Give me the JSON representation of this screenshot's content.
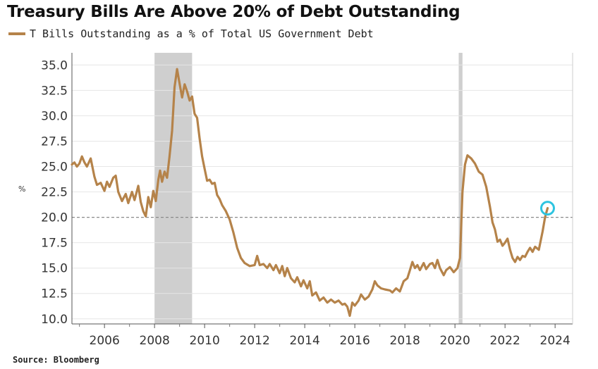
{
  "title": "Treasury Bills Are Above 20% of Debt Outstanding",
  "source": "Source: Bloomberg",
  "chart_data": {
    "type": "line",
    "title": "Treasury Bills Are Above 20% of Debt Outstanding",
    "ylabel": "%",
    "xlabel": "",
    "xlim": [
      2004.7,
      2024.7
    ],
    "ylim": [
      9.5,
      36.2
    ],
    "x_ticks": [
      "2006",
      "2008",
      "2010",
      "2012",
      "2014",
      "2016",
      "2018",
      "2020",
      "2022",
      "2024"
    ],
    "y_ticks": [
      "35.0",
      "32.5",
      "30.0",
      "27.5",
      "25.0",
      "22.5",
      "20.0",
      "17.5",
      "15.0",
      "12.5",
      "10.0"
    ],
    "grid": "horizontal",
    "reference_line": 20.0,
    "recession_bands": [
      [
        2008.0,
        2009.5
      ],
      [
        2020.15,
        2020.3
      ]
    ],
    "highlight_point": {
      "x": 2023.7,
      "y": 20.9
    },
    "colors": {
      "line": "#b5834a",
      "band": "#cfcfcf",
      "highlight": "#2ec4e0"
    },
    "series": [
      {
        "name": "T Bills Outstanding as a % of Total US Government Debt",
        "points": [
          [
            2004.7,
            25.2
          ],
          [
            2004.8,
            25.4
          ],
          [
            2004.9,
            25.0
          ],
          [
            2005.0,
            25.3
          ],
          [
            2005.1,
            26.0
          ],
          [
            2005.2,
            25.4
          ],
          [
            2005.3,
            25.0
          ],
          [
            2005.45,
            25.8
          ],
          [
            2005.6,
            24.0
          ],
          [
            2005.7,
            23.2
          ],
          [
            2005.85,
            23.4
          ],
          [
            2006.0,
            22.6
          ],
          [
            2006.1,
            23.5
          ],
          [
            2006.2,
            23.0
          ],
          [
            2006.35,
            23.9
          ],
          [
            2006.45,
            24.1
          ],
          [
            2006.55,
            22.5
          ],
          [
            2006.7,
            21.6
          ],
          [
            2006.85,
            22.3
          ],
          [
            2006.95,
            21.4
          ],
          [
            2007.1,
            22.5
          ],
          [
            2007.2,
            21.7
          ],
          [
            2007.35,
            23.1
          ],
          [
            2007.45,
            21.5
          ],
          [
            2007.55,
            20.6
          ],
          [
            2007.65,
            20.1
          ],
          [
            2007.75,
            22.0
          ],
          [
            2007.85,
            21.0
          ],
          [
            2007.95,
            22.6
          ],
          [
            2008.05,
            21.6
          ],
          [
            2008.15,
            23.7
          ],
          [
            2008.22,
            24.6
          ],
          [
            2008.3,
            23.5
          ],
          [
            2008.4,
            24.5
          ],
          [
            2008.5,
            23.9
          ],
          [
            2008.6,
            26.0
          ],
          [
            2008.7,
            28.5
          ],
          [
            2008.8,
            32.8
          ],
          [
            2008.9,
            34.6
          ],
          [
            2009.0,
            33.2
          ],
          [
            2009.1,
            31.8
          ],
          [
            2009.2,
            33.1
          ],
          [
            2009.3,
            32.4
          ],
          [
            2009.4,
            31.5
          ],
          [
            2009.5,
            31.9
          ],
          [
            2009.6,
            30.2
          ],
          [
            2009.7,
            29.8
          ],
          [
            2009.8,
            27.8
          ],
          [
            2009.9,
            26.0
          ],
          [
            2010.0,
            24.8
          ],
          [
            2010.1,
            23.6
          ],
          [
            2010.2,
            23.7
          ],
          [
            2010.3,
            23.3
          ],
          [
            2010.4,
            23.4
          ],
          [
            2010.5,
            22.2
          ],
          [
            2010.6,
            21.8
          ],
          [
            2010.7,
            21.2
          ],
          [
            2010.85,
            20.6
          ],
          [
            2011.0,
            19.8
          ],
          [
            2011.15,
            18.5
          ],
          [
            2011.3,
            17.0
          ],
          [
            2011.45,
            16.0
          ],
          [
            2011.6,
            15.5
          ],
          [
            2011.8,
            15.2
          ],
          [
            2012.0,
            15.3
          ],
          [
            2012.1,
            16.2
          ],
          [
            2012.2,
            15.3
          ],
          [
            2012.35,
            15.4
          ],
          [
            2012.5,
            15.0
          ],
          [
            2012.6,
            15.4
          ],
          [
            2012.75,
            14.8
          ],
          [
            2012.85,
            15.3
          ],
          [
            2013.0,
            14.5
          ],
          [
            2013.1,
            15.2
          ],
          [
            2013.2,
            14.2
          ],
          [
            2013.3,
            15.0
          ],
          [
            2013.45,
            14.0
          ],
          [
            2013.6,
            13.6
          ],
          [
            2013.7,
            14.1
          ],
          [
            2013.85,
            13.2
          ],
          [
            2013.95,
            13.8
          ],
          [
            2014.1,
            13.0
          ],
          [
            2014.2,
            13.7
          ],
          [
            2014.3,
            12.3
          ],
          [
            2014.45,
            12.6
          ],
          [
            2014.6,
            11.8
          ],
          [
            2014.75,
            12.1
          ],
          [
            2014.9,
            11.6
          ],
          [
            2015.05,
            11.9
          ],
          [
            2015.2,
            11.6
          ],
          [
            2015.35,
            11.8
          ],
          [
            2015.5,
            11.4
          ],
          [
            2015.6,
            11.5
          ],
          [
            2015.7,
            11.2
          ],
          [
            2015.8,
            10.3
          ],
          [
            2015.9,
            11.6
          ],
          [
            2016.0,
            11.3
          ],
          [
            2016.15,
            11.8
          ],
          [
            2016.25,
            12.4
          ],
          [
            2016.4,
            11.9
          ],
          [
            2016.55,
            12.2
          ],
          [
            2016.7,
            12.9
          ],
          [
            2016.8,
            13.7
          ],
          [
            2016.9,
            13.3
          ],
          [
            2017.05,
            13.0
          ],
          [
            2017.2,
            12.9
          ],
          [
            2017.4,
            12.8
          ],
          [
            2017.5,
            12.6
          ],
          [
            2017.65,
            13.0
          ],
          [
            2017.8,
            12.7
          ],
          [
            2017.95,
            13.7
          ],
          [
            2018.1,
            14.0
          ],
          [
            2018.2,
            14.8
          ],
          [
            2018.3,
            15.6
          ],
          [
            2018.4,
            15.0
          ],
          [
            2018.5,
            15.3
          ],
          [
            2018.6,
            14.8
          ],
          [
            2018.75,
            15.5
          ],
          [
            2018.85,
            14.9
          ],
          [
            2019.0,
            15.4
          ],
          [
            2019.1,
            15.5
          ],
          [
            2019.2,
            15.0
          ],
          [
            2019.3,
            15.8
          ],
          [
            2019.4,
            15.0
          ],
          [
            2019.55,
            14.3
          ],
          [
            2019.65,
            14.8
          ],
          [
            2019.8,
            15.1
          ],
          [
            2019.95,
            14.6
          ],
          [
            2020.1,
            15.0
          ],
          [
            2020.2,
            16.0
          ],
          [
            2020.3,
            22.5
          ],
          [
            2020.4,
            25.2
          ],
          [
            2020.5,
            26.1
          ],
          [
            2020.65,
            25.8
          ],
          [
            2020.8,
            25.3
          ],
          [
            2020.95,
            24.5
          ],
          [
            2021.1,
            24.2
          ],
          [
            2021.25,
            23.0
          ],
          [
            2021.4,
            21.0
          ],
          [
            2021.5,
            19.5
          ],
          [
            2021.6,
            18.8
          ],
          [
            2021.7,
            17.6
          ],
          [
            2021.8,
            17.8
          ],
          [
            2021.9,
            17.2
          ],
          [
            2022.0,
            17.5
          ],
          [
            2022.1,
            17.9
          ],
          [
            2022.2,
            16.8
          ],
          [
            2022.3,
            16.0
          ],
          [
            2022.4,
            15.6
          ],
          [
            2022.5,
            16.1
          ],
          [
            2022.6,
            15.8
          ],
          [
            2022.7,
            16.2
          ],
          [
            2022.8,
            16.1
          ],
          [
            2022.9,
            16.6
          ],
          [
            2023.0,
            17.0
          ],
          [
            2023.1,
            16.6
          ],
          [
            2023.2,
            17.1
          ],
          [
            2023.35,
            16.8
          ],
          [
            2023.5,
            18.6
          ],
          [
            2023.6,
            20.0
          ],
          [
            2023.7,
            20.9
          ]
        ]
      }
    ]
  }
}
